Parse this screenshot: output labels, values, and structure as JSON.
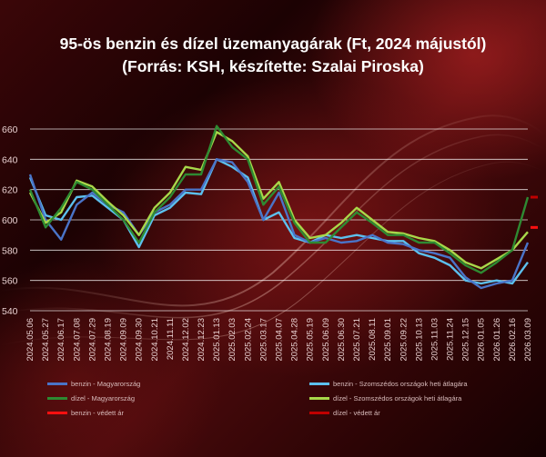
{
  "title": {
    "line1": "95-ös benzin és dízel üzemanyagárak (Ft, 2024 májustól)",
    "line2": "(Forrás: KSH, készítette: Szalai Piroska)"
  },
  "colors": {
    "benzin_hu": "#4a74c8",
    "benzin_neighbors": "#5cc0ee",
    "dizel_hu": "#2e8a32",
    "dizel_neighbors": "#a8d84a",
    "benzin_protected": "#ff1010",
    "dizel_protected": "#c00000"
  },
  "chart_data": {
    "type": "line",
    "title": "95-ös benzin és dízel üzemanyagárak (Ft, 2024 májustól)",
    "xlabel": "",
    "ylabel": "",
    "ylim": [
      540,
      660
    ],
    "yticks": [
      540,
      560,
      580,
      600,
      620,
      640,
      660
    ],
    "grid": true,
    "legend_position": "bottom",
    "categories": [
      "2024.05.06",
      "2024.05.27",
      "2024.06.17",
      "2024.07.08",
      "2024.07.29",
      "2024.08.19",
      "2024.09.09",
      "2024.09.30",
      "2024.10.21",
      "2024.11.11",
      "2024.12.02",
      "2024.12.23",
      "2025.01.13",
      "2025.02.03",
      "2025.02.24",
      "2025.03.17",
      "2025.04.07",
      "2025.04.28",
      "2025.05.19",
      "2025.06.09",
      "2025.06.30",
      "2025.07.21",
      "2025.08.11",
      "2025.09.01",
      "2025.09.22",
      "2025.10.13",
      "2025.11.03",
      "2025.11.24",
      "2025.12.15",
      "2026.01.05",
      "2026.01.26",
      "2026.02.16",
      "2026.03.09"
    ],
    "series": [
      {
        "name": "benzin - Magyarország",
        "color_key": "benzin_hu",
        "values": [
          630,
          600,
          587,
          610,
          618,
          610,
          605,
          590,
          605,
          610,
          620,
          620,
          640,
          638,
          625,
          600,
          618,
          590,
          585,
          588,
          585,
          586,
          590,
          585,
          584,
          580,
          578,
          575,
          562,
          555,
          558,
          560,
          585
        ]
      },
      {
        "name": "dízel - Magyarország",
        "color_key": "dizel_hu",
        "values": [
          620,
          595,
          608,
          625,
          620,
          610,
          600,
          585,
          605,
          615,
          630,
          630,
          662,
          648,
          640,
          610,
          622,
          598,
          585,
          585,
          595,
          605,
          598,
          590,
          590,
          585,
          585,
          578,
          570,
          565,
          572,
          580,
          615
        ]
      },
      {
        "name": "benzin - Szomszédos országok heti átlagára",
        "color_key": "benzin_neighbors",
        "values": [
          628,
          603,
          600,
          615,
          616,
          608,
          600,
          582,
          603,
          608,
          618,
          617,
          640,
          635,
          628,
          600,
          605,
          588,
          585,
          590,
          588,
          590,
          588,
          586,
          586,
          578,
          575,
          570,
          560,
          558,
          560,
          558,
          572
        ]
      },
      {
        "name": "dízel - Szomszédos országok heti átlagára",
        "color_key": "dizel_neighbors",
        "values": [
          618,
          598,
          605,
          626,
          622,
          612,
          603,
          590,
          608,
          618,
          635,
          633,
          658,
          652,
          642,
          614,
          625,
          600,
          588,
          590,
          598,
          608,
          600,
          592,
          591,
          588,
          586,
          580,
          572,
          568,
          574,
          580,
          592
        ]
      },
      {
        "name": "benzin - védett ár",
        "color_key": "benzin_protected",
        "values": [
          null,
          null,
          null,
          null,
          null,
          null,
          null,
          null,
          null,
          null,
          null,
          null,
          null,
          null,
          null,
          null,
          null,
          null,
          null,
          null,
          null,
          null,
          null,
          null,
          null,
          null,
          null,
          null,
          null,
          null,
          null,
          null,
          595
        ]
      },
      {
        "name": "dízel - védett ár",
        "color_key": "dizel_protected",
        "values": [
          null,
          null,
          null,
          null,
          null,
          null,
          null,
          null,
          null,
          null,
          null,
          null,
          null,
          null,
          null,
          null,
          null,
          null,
          null,
          null,
          null,
          null,
          null,
          null,
          null,
          null,
          null,
          null,
          null,
          null,
          null,
          null,
          615
        ]
      }
    ]
  }
}
